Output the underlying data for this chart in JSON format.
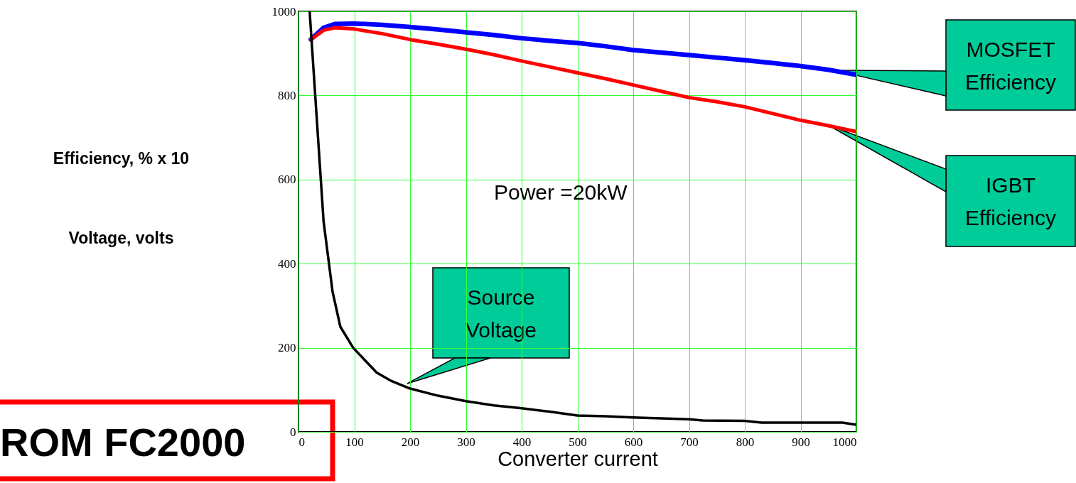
{
  "chart_data": {
    "type": "line",
    "xlabel": "Converter current",
    "ylabel": "Efficiency, % x 10\nVoltage, volts",
    "xlim": [
      0,
      1000
    ],
    "xticks": [
      0,
      100,
      200,
      300,
      400,
      500,
      600,
      700,
      800,
      900,
      1000
    ],
    "ylim": [
      0,
      1000
    ],
    "yticks": [
      0,
      200,
      400,
      600,
      800,
      1000
    ],
    "grid": true,
    "line_style": "solid",
    "series": [
      {
        "color": "#0000ff",
        "x": [
          22,
          45,
          65,
          100,
          150,
          200,
          250,
          300,
          350,
          400,
          450,
          500,
          550,
          600,
          650,
          700,
          750,
          800,
          850,
          900,
          950,
          1000
        ],
        "values": [
          933,
          961,
          970,
          971,
          968,
          963,
          957,
          950,
          944,
          936,
          930,
          925,
          917,
          908,
          902,
          896,
          890,
          884,
          877,
          870,
          861,
          849
        ]
      },
      {
        "color": "#ff0000",
        "x": [
          22,
          45,
          65,
          100,
          150,
          200,
          250,
          300,
          350,
          400,
          450,
          500,
          550,
          600,
          650,
          700,
          750,
          800,
          850,
          900,
          950,
          1000
        ],
        "values": [
          933,
          955,
          961,
          958,
          947,
          933,
          922,
          910,
          897,
          882,
          868,
          854,
          840,
          825,
          810,
          795,
          785,
          773,
          757,
          741,
          728,
          714
        ]
      },
      {
        "color": "#000000",
        "x": [
          20,
          45,
          61,
          75,
          98,
          140,
          165,
          200,
          250,
          300,
          350,
          400,
          450,
          500,
          550,
          600,
          700,
          725,
          800,
          830,
          975,
          1000
        ],
        "values": [
          1000,
          500,
          334,
          250,
          200,
          141,
          122,
          103,
          86,
          73,
          63,
          56,
          48,
          39,
          37,
          34,
          30,
          27,
          26,
          22,
          22,
          17
        ]
      }
    ],
    "annotations": [
      "Power =20kW",
      {
        "text": "MOSFET Efficiency",
        "x": 960,
        "y": 860
      },
      "IGBT Efficiency",
      {
        "text": "Source Voltage",
        "x": 195,
        "y": 115
      },
      "ROM FC2000"
    ]
  }
}
